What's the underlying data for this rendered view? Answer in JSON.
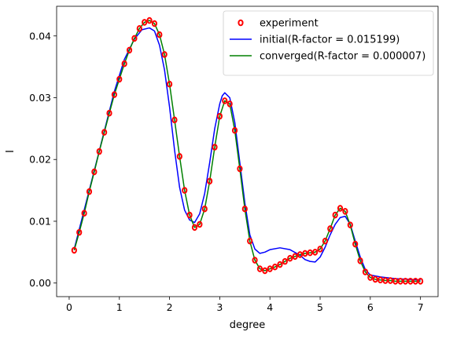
{
  "chart_data": {
    "type": "line",
    "xlabel": "degree",
    "ylabel": "I",
    "xlim": [
      -0.25,
      7.35
    ],
    "ylim": [
      -0.0022,
      0.0448
    ],
    "xticks": [
      0,
      1,
      2,
      3,
      4,
      5,
      6,
      7
    ],
    "yticks": [
      0.0,
      0.01,
      0.02,
      0.03,
      0.04
    ],
    "ytick_labels": [
      "0.00",
      "0.01",
      "0.02",
      "0.03",
      "0.04"
    ],
    "grid": false,
    "legend_position": "top-right",
    "series": [
      {
        "name": "experiment",
        "style": "markers",
        "color": "#ff0000",
        "x": [
          0.1,
          0.2,
          0.3,
          0.4,
          0.5,
          0.6,
          0.7,
          0.8,
          0.9,
          1.0,
          1.1,
          1.2,
          1.3,
          1.4,
          1.5,
          1.6,
          1.7,
          1.8,
          1.9,
          2.0,
          2.1,
          2.2,
          2.3,
          2.4,
          2.5,
          2.6,
          2.7,
          2.8,
          2.9,
          3.0,
          3.1,
          3.2,
          3.3,
          3.4,
          3.5,
          3.6,
          3.7,
          3.8,
          3.9,
          4.0,
          4.1,
          4.2,
          4.3,
          4.4,
          4.5,
          4.6,
          4.7,
          4.8,
          4.9,
          5.0,
          5.1,
          5.2,
          5.3,
          5.4,
          5.5,
          5.6,
          5.7,
          5.8,
          5.9,
          6.0,
          6.1,
          6.2,
          6.3,
          6.4,
          6.5,
          6.6,
          6.7,
          6.8,
          6.9,
          7.0
        ],
        "y": [
          0.0053,
          0.0082,
          0.0113,
          0.0148,
          0.018,
          0.0213,
          0.0244,
          0.0275,
          0.0305,
          0.033,
          0.0355,
          0.0377,
          0.0396,
          0.0412,
          0.0422,
          0.0425,
          0.042,
          0.0402,
          0.037,
          0.0322,
          0.0264,
          0.0205,
          0.015,
          0.011,
          0.009,
          0.0095,
          0.012,
          0.0165,
          0.022,
          0.027,
          0.0295,
          0.029,
          0.0247,
          0.0185,
          0.012,
          0.0068,
          0.0037,
          0.0023,
          0.002,
          0.0023,
          0.0026,
          0.003,
          0.0035,
          0.004,
          0.0043,
          0.0046,
          0.0048,
          0.0049,
          0.005,
          0.0055,
          0.0068,
          0.0088,
          0.011,
          0.0121,
          0.0116,
          0.0094,
          0.0063,
          0.0036,
          0.0018,
          0.0009,
          0.0006,
          0.0005,
          0.0004,
          0.0004,
          0.0003,
          0.0003,
          0.0003,
          0.0003,
          0.0003,
          0.0003
        ]
      },
      {
        "name": "initial(R-factor = 0.015199)",
        "style": "line",
        "color": "#0000ff",
        "x": [
          0.1,
          0.5,
          0.9,
          1.1,
          1.3,
          1.45,
          1.6,
          1.7,
          1.8,
          1.9,
          2.0,
          2.1,
          2.2,
          2.3,
          2.4,
          2.5,
          2.6,
          2.7,
          2.8,
          2.9,
          3.0,
          3.05,
          3.1,
          3.2,
          3.3,
          3.4,
          3.5,
          3.6,
          3.7,
          3.8,
          3.9,
          4.0,
          4.2,
          4.4,
          4.6,
          4.7,
          4.8,
          4.9,
          5.0,
          5.1,
          5.2,
          5.3,
          5.4,
          5.5,
          5.6,
          5.7,
          5.8,
          5.9,
          6.0,
          6.2,
          6.5,
          7.0
        ],
        "y": [
          0.0055,
          0.0182,
          0.031,
          0.0362,
          0.0395,
          0.041,
          0.0413,
          0.0408,
          0.0385,
          0.0345,
          0.0285,
          0.0215,
          0.0155,
          0.0118,
          0.0102,
          0.0098,
          0.0112,
          0.0145,
          0.0195,
          0.025,
          0.029,
          0.0303,
          0.0308,
          0.03,
          0.026,
          0.0195,
          0.013,
          0.0078,
          0.0055,
          0.0048,
          0.005,
          0.0054,
          0.0057,
          0.0054,
          0.0045,
          0.0038,
          0.0035,
          0.0034,
          0.0042,
          0.0058,
          0.0078,
          0.0095,
          0.0106,
          0.0108,
          0.0095,
          0.0068,
          0.0042,
          0.0022,
          0.0013,
          0.001,
          0.0007,
          0.0005
        ]
      },
      {
        "name": "converged(R-factor = 0.000007)",
        "style": "line",
        "color": "#008000",
        "x": [
          0.1,
          0.2,
          0.3,
          0.4,
          0.5,
          0.6,
          0.7,
          0.8,
          0.9,
          1.0,
          1.1,
          1.2,
          1.3,
          1.4,
          1.5,
          1.6,
          1.7,
          1.8,
          1.9,
          2.0,
          2.1,
          2.2,
          2.3,
          2.4,
          2.5,
          2.6,
          2.7,
          2.8,
          2.9,
          3.0,
          3.1,
          3.2,
          3.3,
          3.4,
          3.5,
          3.6,
          3.7,
          3.8,
          3.9,
          4.0,
          4.1,
          4.2,
          4.3,
          4.4,
          4.5,
          4.6,
          4.7,
          4.8,
          4.9,
          5.0,
          5.1,
          5.2,
          5.3,
          5.4,
          5.5,
          5.6,
          5.7,
          5.8,
          5.9,
          6.0,
          6.1,
          6.2,
          6.3,
          6.4,
          6.5,
          6.6,
          6.7,
          6.8,
          6.9,
          7.0
        ],
        "y": [
          0.0053,
          0.0082,
          0.0113,
          0.0148,
          0.018,
          0.0213,
          0.0244,
          0.0275,
          0.0305,
          0.033,
          0.0355,
          0.0377,
          0.0396,
          0.0412,
          0.0422,
          0.0425,
          0.042,
          0.0402,
          0.037,
          0.0322,
          0.0264,
          0.0205,
          0.015,
          0.011,
          0.009,
          0.0095,
          0.012,
          0.0165,
          0.022,
          0.027,
          0.0295,
          0.029,
          0.0247,
          0.0185,
          0.012,
          0.0068,
          0.0037,
          0.0023,
          0.002,
          0.0023,
          0.0026,
          0.003,
          0.0035,
          0.004,
          0.0043,
          0.0046,
          0.0048,
          0.0049,
          0.005,
          0.0055,
          0.0068,
          0.0088,
          0.011,
          0.0121,
          0.0116,
          0.0094,
          0.0063,
          0.0036,
          0.0018,
          0.0009,
          0.0006,
          0.0005,
          0.0004,
          0.0004,
          0.0003,
          0.0003,
          0.0003,
          0.0003,
          0.0003,
          0.0003
        ]
      }
    ]
  }
}
